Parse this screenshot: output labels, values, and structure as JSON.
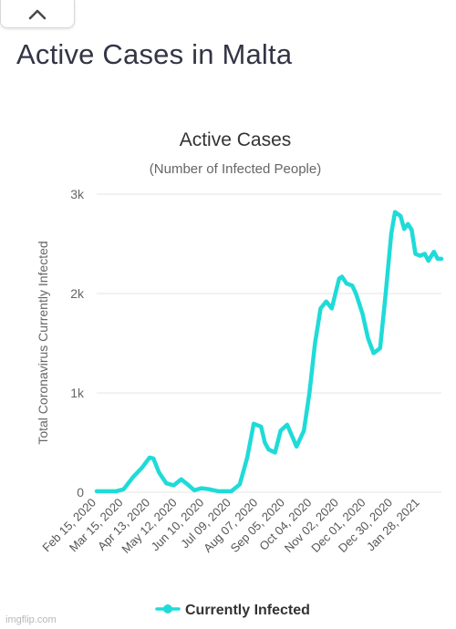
{
  "page": {
    "title": "Active Cases in Malta",
    "watermark": "imgflip.com"
  },
  "colors": {
    "series": "#1fdbd8",
    "text": "#333333",
    "grid": "#e6e6e6"
  },
  "icons": {
    "collapse": "chevron-up-icon"
  },
  "chart_data": {
    "type": "line",
    "title": "Active Cases",
    "subtitle": "(Number of Infected People)",
    "ylabel": "Total Coronavirus Currently Infected",
    "xlabel": "",
    "ylim": [
      0,
      3000
    ],
    "yticks": [
      0,
      1000,
      2000,
      3000
    ],
    "ytick_labels": [
      "0",
      "1k",
      "2k",
      "3k"
    ],
    "x_range": [
      "2020-02-15",
      "2021-02-20"
    ],
    "xticks": [
      "2020-02-15",
      "2020-03-15",
      "2020-04-13",
      "2020-05-12",
      "2020-06-10",
      "2020-07-09",
      "2020-08-07",
      "2020-09-05",
      "2020-10-04",
      "2020-11-02",
      "2020-12-01",
      "2020-12-30",
      "2021-01-28"
    ],
    "xtick_labels": [
      "Feb 15, 2020",
      "Mar 15, 2020",
      "Apr 13, 2020",
      "May 12, 2020",
      "Jun 10, 2020",
      "Jul 09, 2020",
      "Aug 07, 2020",
      "Sep 05, 2020",
      "Oct 04, 2020",
      "Nov 02, 2020",
      "Dec 01, 2020",
      "Dec 30, 2020",
      "Jan 28, 2021"
    ],
    "grid": true,
    "legend": "bottom",
    "series": [
      {
        "name": "Currently Infected",
        "x": [
          "2020-02-15",
          "2020-03-07",
          "2020-03-15",
          "2020-03-25",
          "2020-04-04",
          "2020-04-12",
          "2020-04-16",
          "2020-04-22",
          "2020-04-30",
          "2020-05-08",
          "2020-05-16",
          "2020-05-24",
          "2020-05-30",
          "2020-06-07",
          "2020-06-15",
          "2020-06-25",
          "2020-07-09",
          "2020-07-18",
          "2020-07-26",
          "2020-08-02",
          "2020-08-10",
          "2020-08-14",
          "2020-08-18",
          "2020-08-25",
          "2020-08-31",
          "2020-09-07",
          "2020-09-13",
          "2020-09-17",
          "2020-09-25",
          "2020-10-01",
          "2020-10-07",
          "2020-10-13",
          "2020-10-19",
          "2020-10-25",
          "2020-10-29",
          "2020-11-02",
          "2020-11-05",
          "2020-11-10",
          "2020-11-16",
          "2020-11-20",
          "2020-11-27",
          "2020-12-03",
          "2020-12-09",
          "2020-12-16",
          "2020-12-22",
          "2020-12-28",
          "2021-01-01",
          "2021-01-07",
          "2021-01-11",
          "2021-01-15",
          "2021-01-19",
          "2021-01-23",
          "2021-01-28",
          "2021-02-02",
          "2021-02-06",
          "2021-02-12",
          "2021-02-16",
          "2021-02-20"
        ],
        "values": [
          10,
          10,
          30,
          150,
          250,
          350,
          340,
          200,
          90,
          70,
          130,
          70,
          20,
          40,
          30,
          10,
          10,
          80,
          350,
          690,
          660,
          500,
          430,
          400,
          620,
          680,
          550,
          460,
          620,
          1000,
          1500,
          1850,
          1920,
          1850,
          2000,
          2150,
          2170,
          2100,
          2080,
          2000,
          1800,
          1550,
          1400,
          1450,
          2000,
          2600,
          2820,
          2780,
          2650,
          2700,
          2640,
          2400,
          2380,
          2400,
          2330,
          2420,
          2350,
          2350
        ]
      }
    ]
  }
}
